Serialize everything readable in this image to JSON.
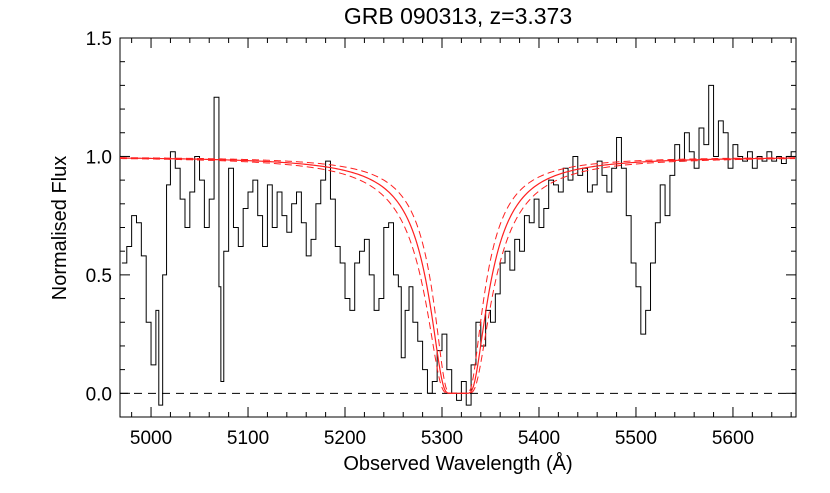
{
  "chart_data": {
    "type": "line",
    "title": "GRB 090313, z=3.373",
    "xlabel": "Observed Wavelength (Å)",
    "ylabel": "Normalised Flux",
    "xlim": [
      4968,
      5665
    ],
    "ylim": [
      -0.1,
      1.5
    ],
    "xticks": [
      5000,
      5100,
      5200,
      5300,
      5400,
      5500,
      5600
    ],
    "yticks": [
      0.0,
      0.5,
      1.0,
      1.5
    ],
    "ytick_labels": [
      "0.0",
      "0.5",
      "1.0",
      "1.5"
    ],
    "grid": false,
    "reference_line": {
      "y": 0.0,
      "style": "dashed",
      "color": "#000000"
    },
    "dla_fit": {
      "center": 5317,
      "best_width": 29,
      "lower_width": 25,
      "upper_width": 33
    },
    "series": [
      {
        "style": "step",
        "color": "#000000",
        "x": [
          4970,
          4975,
          4980,
          4985,
          4990,
          4995,
          5000,
          5005,
          5008,
          5012,
          5016,
          5020,
          5025,
          5030,
          5035,
          5040,
          5045,
          5050,
          5055,
          5060,
          5065,
          5070,
          5072,
          5075,
          5080,
          5085,
          5090,
          5095,
          5100,
          5105,
          5110,
          5115,
          5120,
          5125,
          5130,
          5135,
          5140,
          5145,
          5150,
          5155,
          5160,
          5165,
          5170,
          5175,
          5180,
          5185,
          5190,
          5195,
          5200,
          5205,
          5210,
          5215,
          5220,
          5225,
          5230,
          5235,
          5240,
          5245,
          5250,
          5255,
          5258,
          5262,
          5266,
          5270,
          5275,
          5280,
          5285,
          5290,
          5295,
          5300,
          5305,
          5310,
          5315,
          5320,
          5325,
          5330,
          5335,
          5340,
          5345,
          5350,
          5355,
          5360,
          5365,
          5370,
          5375,
          5380,
          5385,
          5390,
          5395,
          5400,
          5405,
          5410,
          5415,
          5420,
          5425,
          5430,
          5435,
          5440,
          5445,
          5450,
          5455,
          5460,
          5465,
          5470,
          5475,
          5480,
          5485,
          5490,
          5495,
          5500,
          5505,
          5510,
          5515,
          5520,
          5525,
          5530,
          5535,
          5540,
          5545,
          5550,
          5555,
          5560,
          5565,
          5570,
          5575,
          5580,
          5585,
          5590,
          5595,
          5600,
          5605,
          5610,
          5615,
          5620,
          5625,
          5630,
          5635,
          5640,
          5645,
          5650,
          5655,
          5660
        ],
        "y": [
          0.55,
          0.62,
          0.75,
          0.72,
          0.58,
          0.3,
          0.12,
          0.35,
          -0.05,
          0.5,
          0.88,
          1.02,
          0.95,
          0.82,
          0.7,
          0.85,
          1.0,
          0.9,
          0.7,
          0.82,
          1.25,
          0.45,
          0.05,
          0.6,
          0.95,
          0.7,
          0.62,
          0.78,
          0.85,
          0.9,
          0.75,
          0.62,
          0.88,
          0.7,
          0.85,
          0.75,
          0.68,
          0.8,
          0.85,
          0.72,
          0.58,
          0.65,
          0.8,
          0.9,
          0.98,
          0.82,
          0.62,
          0.55,
          0.4,
          0.35,
          0.55,
          0.6,
          0.65,
          0.5,
          0.35,
          0.4,
          0.7,
          0.72,
          0.5,
          0.45,
          0.15,
          0.35,
          0.45,
          0.3,
          0.22,
          0.1,
          0.0,
          0.05,
          0.18,
          0.25,
          0.1,
          0.0,
          -0.03,
          0.05,
          -0.05,
          0.12,
          0.3,
          0.2,
          0.35,
          0.3,
          0.42,
          0.55,
          0.6,
          0.52,
          0.65,
          0.6,
          0.75,
          0.72,
          0.82,
          0.7,
          0.78,
          0.9,
          0.88,
          0.85,
          0.95,
          0.9,
          1.0,
          0.92,
          0.95,
          0.85,
          0.88,
          0.98,
          0.92,
          0.85,
          0.95,
          1.08,
          0.95,
          0.75,
          0.55,
          0.45,
          0.25,
          0.35,
          0.55,
          0.72,
          0.88,
          0.75,
          0.92,
          1.05,
          0.98,
          1.1,
          1.02,
          0.95,
          1.12,
          1.05,
          1.3,
          1.0,
          1.15,
          1.1,
          0.95,
          1.05,
          1.0,
          0.98,
          1.02,
          0.95,
          1.0,
          0.98,
          1.02,
          0.98,
          1.0,
          0.97,
          1.0,
          1.02
        ]
      }
    ]
  }
}
